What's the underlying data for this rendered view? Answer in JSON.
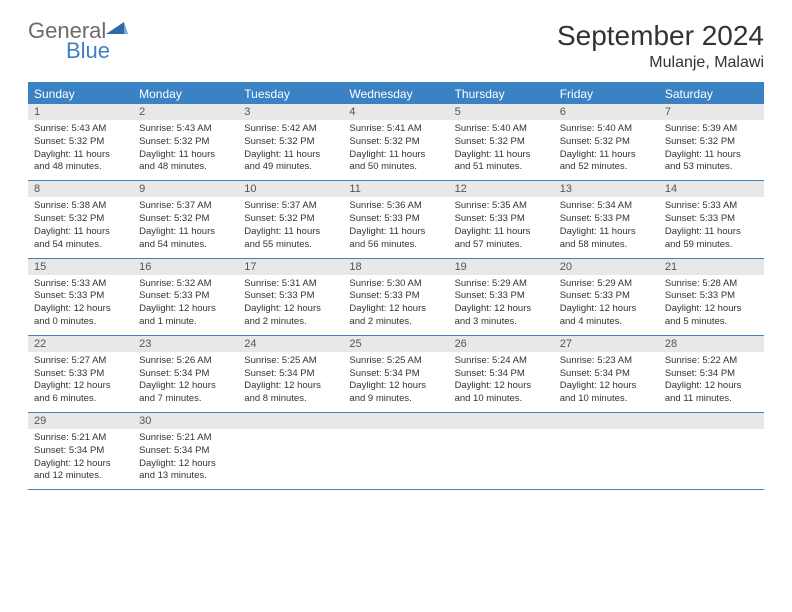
{
  "logo": {
    "general": "General",
    "blue": "Blue"
  },
  "title": "September 2024",
  "location": "Mulanje, Malawi",
  "colors": {
    "accent": "#3b82c4",
    "header_bg": "#3b82c4",
    "header_text": "#ffffff",
    "daynum_bg": "#e8e8e8",
    "daynum_text": "#555555",
    "body_text": "#333333",
    "logo_gray": "#6b6b6b",
    "logo_blue": "#3b82c4",
    "page_bg": "#ffffff"
  },
  "day_names": [
    "Sunday",
    "Monday",
    "Tuesday",
    "Wednesday",
    "Thursday",
    "Friday",
    "Saturday"
  ],
  "weeks": [
    [
      {
        "n": "1",
        "sr": "Sunrise: 5:43 AM",
        "ss": "Sunset: 5:32 PM",
        "d1": "Daylight: 11 hours",
        "d2": "and 48 minutes."
      },
      {
        "n": "2",
        "sr": "Sunrise: 5:43 AM",
        "ss": "Sunset: 5:32 PM",
        "d1": "Daylight: 11 hours",
        "d2": "and 48 minutes."
      },
      {
        "n": "3",
        "sr": "Sunrise: 5:42 AM",
        "ss": "Sunset: 5:32 PM",
        "d1": "Daylight: 11 hours",
        "d2": "and 49 minutes."
      },
      {
        "n": "4",
        "sr": "Sunrise: 5:41 AM",
        "ss": "Sunset: 5:32 PM",
        "d1": "Daylight: 11 hours",
        "d2": "and 50 minutes."
      },
      {
        "n": "5",
        "sr": "Sunrise: 5:40 AM",
        "ss": "Sunset: 5:32 PM",
        "d1": "Daylight: 11 hours",
        "d2": "and 51 minutes."
      },
      {
        "n": "6",
        "sr": "Sunrise: 5:40 AM",
        "ss": "Sunset: 5:32 PM",
        "d1": "Daylight: 11 hours",
        "d2": "and 52 minutes."
      },
      {
        "n": "7",
        "sr": "Sunrise: 5:39 AM",
        "ss": "Sunset: 5:32 PM",
        "d1": "Daylight: 11 hours",
        "d2": "and 53 minutes."
      }
    ],
    [
      {
        "n": "8",
        "sr": "Sunrise: 5:38 AM",
        "ss": "Sunset: 5:32 PM",
        "d1": "Daylight: 11 hours",
        "d2": "and 54 minutes."
      },
      {
        "n": "9",
        "sr": "Sunrise: 5:37 AM",
        "ss": "Sunset: 5:32 PM",
        "d1": "Daylight: 11 hours",
        "d2": "and 54 minutes."
      },
      {
        "n": "10",
        "sr": "Sunrise: 5:37 AM",
        "ss": "Sunset: 5:32 PM",
        "d1": "Daylight: 11 hours",
        "d2": "and 55 minutes."
      },
      {
        "n": "11",
        "sr": "Sunrise: 5:36 AM",
        "ss": "Sunset: 5:33 PM",
        "d1": "Daylight: 11 hours",
        "d2": "and 56 minutes."
      },
      {
        "n": "12",
        "sr": "Sunrise: 5:35 AM",
        "ss": "Sunset: 5:33 PM",
        "d1": "Daylight: 11 hours",
        "d2": "and 57 minutes."
      },
      {
        "n": "13",
        "sr": "Sunrise: 5:34 AM",
        "ss": "Sunset: 5:33 PM",
        "d1": "Daylight: 11 hours",
        "d2": "and 58 minutes."
      },
      {
        "n": "14",
        "sr": "Sunrise: 5:33 AM",
        "ss": "Sunset: 5:33 PM",
        "d1": "Daylight: 11 hours",
        "d2": "and 59 minutes."
      }
    ],
    [
      {
        "n": "15",
        "sr": "Sunrise: 5:33 AM",
        "ss": "Sunset: 5:33 PM",
        "d1": "Daylight: 12 hours",
        "d2": "and 0 minutes."
      },
      {
        "n": "16",
        "sr": "Sunrise: 5:32 AM",
        "ss": "Sunset: 5:33 PM",
        "d1": "Daylight: 12 hours",
        "d2": "and 1 minute."
      },
      {
        "n": "17",
        "sr": "Sunrise: 5:31 AM",
        "ss": "Sunset: 5:33 PM",
        "d1": "Daylight: 12 hours",
        "d2": "and 2 minutes."
      },
      {
        "n": "18",
        "sr": "Sunrise: 5:30 AM",
        "ss": "Sunset: 5:33 PM",
        "d1": "Daylight: 12 hours",
        "d2": "and 2 minutes."
      },
      {
        "n": "19",
        "sr": "Sunrise: 5:29 AM",
        "ss": "Sunset: 5:33 PM",
        "d1": "Daylight: 12 hours",
        "d2": "and 3 minutes."
      },
      {
        "n": "20",
        "sr": "Sunrise: 5:29 AM",
        "ss": "Sunset: 5:33 PM",
        "d1": "Daylight: 12 hours",
        "d2": "and 4 minutes."
      },
      {
        "n": "21",
        "sr": "Sunrise: 5:28 AM",
        "ss": "Sunset: 5:33 PM",
        "d1": "Daylight: 12 hours",
        "d2": "and 5 minutes."
      }
    ],
    [
      {
        "n": "22",
        "sr": "Sunrise: 5:27 AM",
        "ss": "Sunset: 5:33 PM",
        "d1": "Daylight: 12 hours",
        "d2": "and 6 minutes."
      },
      {
        "n": "23",
        "sr": "Sunrise: 5:26 AM",
        "ss": "Sunset: 5:34 PM",
        "d1": "Daylight: 12 hours",
        "d2": "and 7 minutes."
      },
      {
        "n": "24",
        "sr": "Sunrise: 5:25 AM",
        "ss": "Sunset: 5:34 PM",
        "d1": "Daylight: 12 hours",
        "d2": "and 8 minutes."
      },
      {
        "n": "25",
        "sr": "Sunrise: 5:25 AM",
        "ss": "Sunset: 5:34 PM",
        "d1": "Daylight: 12 hours",
        "d2": "and 9 minutes."
      },
      {
        "n": "26",
        "sr": "Sunrise: 5:24 AM",
        "ss": "Sunset: 5:34 PM",
        "d1": "Daylight: 12 hours",
        "d2": "and 10 minutes."
      },
      {
        "n": "27",
        "sr": "Sunrise: 5:23 AM",
        "ss": "Sunset: 5:34 PM",
        "d1": "Daylight: 12 hours",
        "d2": "and 10 minutes."
      },
      {
        "n": "28",
        "sr": "Sunrise: 5:22 AM",
        "ss": "Sunset: 5:34 PM",
        "d1": "Daylight: 12 hours",
        "d2": "and 11 minutes."
      }
    ],
    [
      {
        "n": "29",
        "sr": "Sunrise: 5:21 AM",
        "ss": "Sunset: 5:34 PM",
        "d1": "Daylight: 12 hours",
        "d2": "and 12 minutes."
      },
      {
        "n": "30",
        "sr": "Sunrise: 5:21 AM",
        "ss": "Sunset: 5:34 PM",
        "d1": "Daylight: 12 hours",
        "d2": "and 13 minutes."
      },
      {
        "n": "",
        "sr": "",
        "ss": "",
        "d1": "",
        "d2": ""
      },
      {
        "n": "",
        "sr": "",
        "ss": "",
        "d1": "",
        "d2": ""
      },
      {
        "n": "",
        "sr": "",
        "ss": "",
        "d1": "",
        "d2": ""
      },
      {
        "n": "",
        "sr": "",
        "ss": "",
        "d1": "",
        "d2": ""
      },
      {
        "n": "",
        "sr": "",
        "ss": "",
        "d1": "",
        "d2": ""
      }
    ]
  ]
}
